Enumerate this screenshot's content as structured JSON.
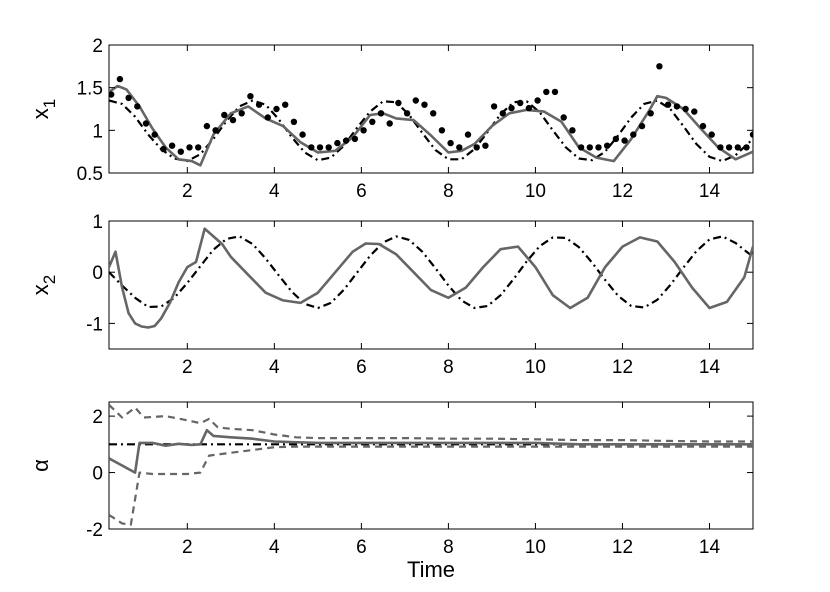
{
  "chart_data": [
    {
      "type": "line",
      "ylabel": "x",
      "ylabel_sub": "1",
      "xlim": [
        0.2,
        15
      ],
      "ylim": [
        0.5,
        2
      ],
      "xticks": [
        "2",
        "4",
        "6",
        "8",
        "10",
        "12",
        "14"
      ],
      "yticks": [
        "0.5",
        "1",
        "1.5",
        "2"
      ],
      "series": [
        {
          "style": "dashdot",
          "color": "#000000",
          "x": [
            0.2,
            0.5,
            0.8,
            1.1,
            1.4,
            1.7,
            2.0,
            2.3,
            2.6,
            2.9,
            3.2,
            3.5,
            3.8,
            4.1,
            4.4,
            4.7,
            5.0,
            5.3,
            5.6,
            5.9,
            6.2,
            6.5,
            6.8,
            7.1,
            7.4,
            7.7,
            8.0,
            8.3,
            8.6,
            8.9,
            9.2,
            9.5,
            9.8,
            10.1,
            10.4,
            10.7,
            11.0,
            11.3,
            11.6,
            11.9,
            12.2,
            12.5,
            12.8,
            13.1,
            13.4,
            13.7,
            14.0,
            14.3,
            14.6,
            15.0
          ],
          "y": [
            1.35,
            1.31,
            1.16,
            0.95,
            0.78,
            0.67,
            0.64,
            0.72,
            0.9,
            1.11,
            1.28,
            1.35,
            1.3,
            1.13,
            0.92,
            0.74,
            0.65,
            0.68,
            0.82,
            1.03,
            1.22,
            1.34,
            1.33,
            1.18,
            0.97,
            0.77,
            0.66,
            0.66,
            0.78,
            0.98,
            1.19,
            1.33,
            1.34,
            1.21,
            1.0,
            0.8,
            0.67,
            0.65,
            0.75,
            0.94,
            1.15,
            1.31,
            1.35,
            1.25,
            1.05,
            0.84,
            0.69,
            0.64,
            0.71,
            0.9
          ]
        },
        {
          "style": "solid",
          "color": "#666666",
          "x": [
            0.2,
            0.4,
            0.6,
            0.9,
            1.2,
            1.5,
            1.8,
            2.1,
            2.3,
            2.6,
            3.0,
            3.4,
            3.8,
            4.2,
            4.6,
            5.0,
            5.4,
            5.8,
            6.2,
            6.5,
            6.8,
            7.2,
            7.6,
            8.0,
            8.3,
            8.6,
            9.0,
            9.4,
            9.8,
            10.2,
            10.6,
            11.0,
            11.4,
            11.8,
            12.2,
            12.6,
            12.8,
            13.0,
            13.4,
            13.8,
            14.2,
            14.6,
            15.0
          ],
          "y": [
            1.45,
            1.52,
            1.48,
            1.28,
            1.02,
            0.8,
            0.66,
            0.64,
            0.59,
            0.95,
            1.2,
            1.28,
            1.14,
            1.05,
            0.86,
            0.74,
            0.76,
            0.92,
            1.18,
            1.2,
            1.14,
            1.12,
            0.94,
            0.74,
            0.76,
            0.84,
            1.05,
            1.2,
            1.24,
            1.22,
            1.1,
            0.8,
            0.68,
            0.64,
            0.9,
            1.22,
            1.4,
            1.38,
            1.25,
            1.02,
            0.8,
            0.66,
            0.75
          ]
        }
      ],
      "points": {
        "color": "#000000",
        "x": [
          0.25,
          0.45,
          0.65,
          0.85,
          1.05,
          1.25,
          1.45,
          1.65,
          1.85,
          2.05,
          2.25,
          2.45,
          2.65,
          2.85,
          3.05,
          3.25,
          3.45,
          3.65,
          3.85,
          4.05,
          4.25,
          4.45,
          4.65,
          4.85,
          5.05,
          5.25,
          5.45,
          5.65,
          5.85,
          6.05,
          6.25,
          6.45,
          6.65,
          6.85,
          7.05,
          7.25,
          7.45,
          7.65,
          7.85,
          8.05,
          8.25,
          8.45,
          8.65,
          8.85,
          9.05,
          9.25,
          9.45,
          9.65,
          9.85,
          10.05,
          10.25,
          10.45,
          10.65,
          10.85,
          11.05,
          11.25,
          11.45,
          11.65,
          11.85,
          12.05,
          12.25,
          12.45,
          12.65,
          12.85,
          13.05,
          13.25,
          13.45,
          13.65,
          13.85,
          14.05,
          14.25,
          14.45,
          14.65,
          14.85,
          15.0
        ],
        "y": [
          1.42,
          1.6,
          1.38,
          1.28,
          1.08,
          0.95,
          0.78,
          0.82,
          0.75,
          0.8,
          0.8,
          1.05,
          1.0,
          1.18,
          1.12,
          1.2,
          1.4,
          1.3,
          1.15,
          1.25,
          1.3,
          1.1,
          0.95,
          0.8,
          0.8,
          0.8,
          0.85,
          0.88,
          0.9,
          1.0,
          1.1,
          1.2,
          1.08,
          1.32,
          1.2,
          1.35,
          1.3,
          1.2,
          1.0,
          0.85,
          0.8,
          0.95,
          0.8,
          0.82,
          1.28,
          1.2,
          1.26,
          1.32,
          1.26,
          1.35,
          1.45,
          1.45,
          1.15,
          1.0,
          0.8,
          0.8,
          0.8,
          0.82,
          0.9,
          0.88,
          0.95,
          1.05,
          1.2,
          1.75,
          1.3,
          1.28,
          1.25,
          1.22,
          1.05,
          0.95,
          0.8,
          0.8,
          0.8,
          0.8,
          0.95
        ]
      }
    },
    {
      "type": "line",
      "ylabel": "x",
      "ylabel_sub": "2",
      "xlim": [
        0.2,
        15
      ],
      "ylim": [
        -1.5,
        1
      ],
      "xticks": [
        "2",
        "4",
        "6",
        "8",
        "10",
        "12",
        "14"
      ],
      "yticks": [
        "-1",
        "0",
        "1"
      ],
      "series": [
        {
          "style": "dashdot",
          "color": "#000000",
          "x": [
            0.2,
            0.5,
            0.8,
            1.1,
            1.4,
            1.7,
            2.0,
            2.3,
            2.6,
            2.9,
            3.2,
            3.5,
            3.8,
            4.1,
            4.4,
            4.7,
            5.0,
            5.3,
            5.6,
            5.9,
            6.2,
            6.5,
            6.8,
            7.1,
            7.4,
            7.7,
            8.0,
            8.3,
            8.6,
            8.9,
            9.2,
            9.5,
            9.8,
            10.1,
            10.4,
            10.7,
            11.0,
            11.3,
            11.6,
            11.9,
            12.2,
            12.5,
            12.8,
            13.1,
            13.4,
            13.7,
            14.0,
            14.3,
            14.6,
            15.0
          ],
          "y": [
            0.0,
            -0.26,
            -0.5,
            -0.68,
            -0.67,
            -0.5,
            -0.21,
            0.12,
            0.44,
            0.65,
            0.7,
            0.55,
            0.27,
            -0.06,
            -0.38,
            -0.62,
            -0.7,
            -0.6,
            -0.34,
            -0.01,
            0.32,
            0.58,
            0.7,
            0.63,
            0.4,
            0.08,
            -0.26,
            -0.55,
            -0.7,
            -0.66,
            -0.45,
            -0.13,
            0.21,
            0.51,
            0.68,
            0.67,
            0.49,
            0.19,
            -0.15,
            -0.46,
            -0.66,
            -0.69,
            -0.54,
            -0.25,
            0.09,
            0.41,
            0.64,
            0.7,
            0.57,
            0.3
          ]
        },
        {
          "style": "solid",
          "color": "#666666",
          "x": [
            0.2,
            0.35,
            0.5,
            0.65,
            0.8,
            0.95,
            1.1,
            1.25,
            1.4,
            1.6,
            1.8,
            2.0,
            2.2,
            2.4,
            2.6,
            2.8,
            3.0,
            3.4,
            3.8,
            4.2,
            4.6,
            5.0,
            5.4,
            5.8,
            6.1,
            6.4,
            6.8,
            7.2,
            7.6,
            8.0,
            8.4,
            8.8,
            9.2,
            9.6,
            10.0,
            10.4,
            10.8,
            11.2,
            11.6,
            12.0,
            12.4,
            12.8,
            13.2,
            13.6,
            14.0,
            14.4,
            14.8,
            15.0
          ],
          "y": [
            0.1,
            0.4,
            -0.3,
            -0.8,
            -1.0,
            -1.06,
            -1.08,
            -1.05,
            -0.9,
            -0.6,
            -0.2,
            0.1,
            0.2,
            0.85,
            0.7,
            0.55,
            0.3,
            -0.05,
            -0.4,
            -0.55,
            -0.6,
            -0.4,
            0.0,
            0.4,
            0.56,
            0.55,
            0.35,
            0.0,
            -0.35,
            -0.5,
            -0.3,
            0.1,
            0.45,
            0.5,
            0.1,
            -0.45,
            -0.7,
            -0.5,
            0.1,
            0.5,
            0.68,
            0.6,
            0.2,
            -0.3,
            -0.7,
            -0.58,
            -0.1,
            0.5
          ]
        }
      ]
    },
    {
      "type": "line",
      "xlabel": "Time",
      "ylabel": "α",
      "xlim": [
        0.2,
        15
      ],
      "ylim": [
        -2,
        2.5
      ],
      "xticks": [
        "2",
        "4",
        "6",
        "8",
        "10",
        "12",
        "14"
      ],
      "yticks": [
        "-2",
        "0",
        "2"
      ],
      "series": [
        {
          "style": "dashdot",
          "color": "#000000",
          "x": [
            0.2,
            15.0
          ],
          "y": [
            1.0,
            1.0
          ]
        },
        {
          "style": "solid",
          "color": "#666666",
          "x": [
            0.2,
            0.5,
            0.8,
            0.9,
            1.2,
            1.5,
            1.8,
            2.1,
            2.3,
            2.45,
            2.6,
            3.0,
            3.5,
            4.0,
            5.0,
            6.0,
            7.0,
            8.0,
            9.0,
            10.0,
            11.0,
            12.0,
            13.0,
            14.0,
            15.0
          ],
          "y": [
            0.5,
            0.25,
            0.0,
            1.05,
            1.05,
            0.95,
            1.02,
            0.98,
            1.0,
            1.5,
            1.3,
            1.25,
            1.2,
            1.1,
            1.05,
            1.05,
            1.05,
            1.05,
            1.05,
            1.05,
            1.0,
            1.0,
            1.0,
            1.0,
            1.0
          ]
        },
        {
          "style": "dashed",
          "color": "#666666",
          "x": [
            0.2,
            0.5,
            0.8,
            1.0,
            1.5,
            2.0,
            2.3,
            2.5,
            2.7,
            3.0,
            3.5,
            4.0,
            4.5,
            5.0,
            6.0,
            7.0,
            8.0,
            9.0,
            10.0,
            11.0,
            12.0,
            13.0,
            14.0,
            15.0
          ],
          "y": [
            2.4,
            1.95,
            2.3,
            1.95,
            2.0,
            1.85,
            1.75,
            1.9,
            1.6,
            1.55,
            1.5,
            1.35,
            1.25,
            1.22,
            1.22,
            1.22,
            1.2,
            1.2,
            1.18,
            1.15,
            1.15,
            1.12,
            1.1,
            1.1
          ]
        },
        {
          "style": "dashed",
          "color": "#666666",
          "x": [
            0.2,
            0.5,
            0.7,
            0.9,
            1.2,
            1.6,
            2.0,
            2.3,
            2.5,
            3.0,
            3.5,
            4.0,
            4.5,
            5.0,
            6.0,
            7.0,
            8.0,
            9.0,
            10.0,
            11.0,
            12.0,
            13.0,
            14.0,
            15.0
          ],
          "y": [
            -1.5,
            -1.8,
            -1.85,
            0.0,
            -0.05,
            -0.05,
            -0.05,
            0.0,
            0.6,
            0.7,
            0.8,
            0.9,
            0.92,
            0.92,
            0.92,
            0.92,
            0.92,
            0.92,
            0.92,
            0.92,
            0.92,
            0.92,
            0.92,
            0.92
          ]
        }
      ]
    }
  ]
}
